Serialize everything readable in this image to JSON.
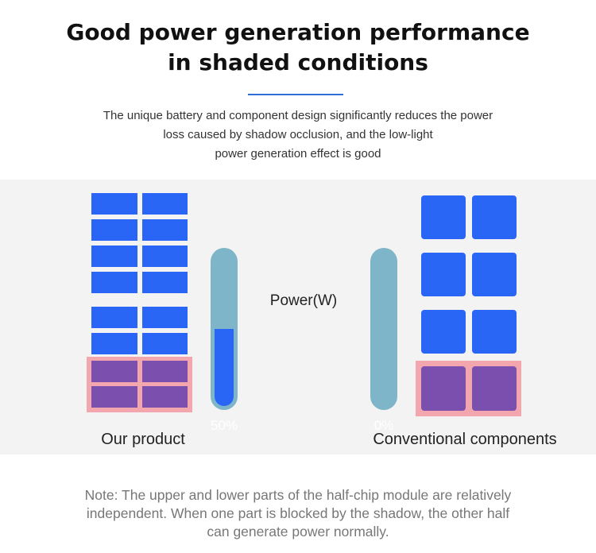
{
  "header": {
    "title_lines": [
      "Good power generation performance",
      "in shaded conditions"
    ],
    "subtitle_lines": [
      "The unique battery and component design significantly reduces the power",
      "loss caused by shadow occlusion, and the low-light",
      "power generation effect is good"
    ]
  },
  "diagram": {
    "center_label": "Power(W)",
    "left": {
      "label": "Our product",
      "power_percent_label": "50%",
      "power_level": 0.5
    },
    "right": {
      "label": "Conventional components",
      "power_percent_label": "0%",
      "power_level": 0
    },
    "colors": {
      "cell": "#2a66f5",
      "shaded_cell": "#7b4fae",
      "shadow_frame": "#f3a6ad",
      "tube": "#7fb5c9"
    }
  },
  "footer": {
    "note_lines": [
      "Note: The upper and lower parts of the half-chip module are relatively",
      "independent. When one part is blocked by the shadow, the other half",
      "can generate power normally."
    ]
  }
}
